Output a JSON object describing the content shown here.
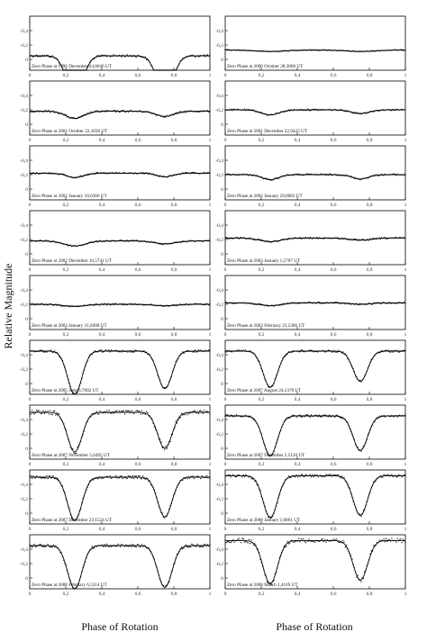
{
  "figure": {
    "ylabel": "Relative Magnitude",
    "xlabel_left": "Phase of Rotation",
    "xlabel_right": "Phase of Rotation"
  },
  "chart_data": {
    "type": "scatter",
    "x_ticks": [
      "0",
      "0,2",
      "0,4",
      "0,6",
      "0,8",
      "1"
    ],
    "xlim": [
      0,
      1
    ],
    "y_inverted": true,
    "grid": false,
    "panels": [
      {
        "label": "Zero Phase at 1996 December 24,8646 UT",
        "y_ticks": [
          "-0,4",
          "-0,2",
          "0"
        ],
        "ylim": [
          -0.6,
          0.15
        ],
        "baseline": -0.05,
        "depth1": 0.55,
        "depth2": 0.52,
        "width": 0.045,
        "noise": 0.015
      },
      {
        "label": "Zero Phase at 2000 October 28,3000 UT",
        "y_ticks": [
          "-0,4",
          "-0,2",
          "0"
        ],
        "ylim": [
          -0.6,
          0.15
        ],
        "baseline": -0.13,
        "depth1": 0.02,
        "depth2": 0.02,
        "width": 0.08,
        "noise": 0.006
      },
      {
        "label": "Zero Phase at 2001 October 22,1830 UT",
        "y_ticks": [
          "-0,4",
          "-0,2",
          "0"
        ],
        "ylim": [
          -0.6,
          0.15
        ],
        "baseline": -0.18,
        "depth1": 0.1,
        "depth2": 0.07,
        "width": 0.05,
        "noise": 0.012
      },
      {
        "label": "Zero Phase at 2001 December 22,9425 UT",
        "y_ticks": [
          "-0,4",
          "-0,2",
          "0"
        ],
        "ylim": [
          -0.6,
          0.15
        ],
        "baseline": -0.2,
        "depth1": 0.07,
        "depth2": 0.05,
        "width": 0.05,
        "noise": 0.01
      },
      {
        "label": "Zero Phase at 2002 January 10,6366 UT",
        "y_ticks": [
          "-0,4",
          "-0,2",
          "0"
        ],
        "ylim": [
          -0.6,
          0.15
        ],
        "baseline": -0.22,
        "depth1": 0.06,
        "depth2": 0.05,
        "width": 0.045,
        "noise": 0.01
      },
      {
        "label": "Zero Phase at 2002 January 29,8082 UT",
        "y_ticks": [
          "-0,4",
          "-0,2",
          "0"
        ],
        "ylim": [
          -0.6,
          0.15
        ],
        "baseline": -0.2,
        "depth1": 0.07,
        "depth2": 0.06,
        "width": 0.045,
        "noise": 0.01
      },
      {
        "label": "Zero Phase at 2002 December 10,5741 UT",
        "y_ticks": [
          "-0,4",
          "-0,2",
          "0"
        ],
        "ylim": [
          -0.6,
          0.15
        ],
        "baseline": -0.18,
        "depth1": 0.07,
        "depth2": 0.04,
        "width": 0.06,
        "noise": 0.01
      },
      {
        "label": "Zero Phase at 2003 January 1,5707 UT",
        "y_ticks": [
          "-0,4",
          "-0,2",
          "0"
        ],
        "ylim": [
          -0.6,
          0.15
        ],
        "baseline": -0.22,
        "depth1": 0.05,
        "depth2": 0.03,
        "width": 0.06,
        "noise": 0.01
      },
      {
        "label": "Zero Phase at 2003 January 31,8498 UT",
        "y_ticks": [
          "-0,4",
          "-0,2",
          "0"
        ],
        "ylim": [
          -0.6,
          0.15
        ],
        "baseline": -0.2,
        "depth1": 0.03,
        "depth2": 0.02,
        "width": 0.06,
        "noise": 0.01
      },
      {
        "label": "Zero Phase at 2003 February 23,5306 UT",
        "y_ticks": [
          "-0,4",
          "-0,2",
          "0"
        ],
        "ylim": [
          -0.6,
          0.15
        ],
        "baseline": -0.22,
        "depth1": 0.04,
        "depth2": 0.02,
        "width": 0.06,
        "noise": 0.01
      },
      {
        "label": "Zero Phase at 2005 June 6,7002 UT",
        "y_ticks": [
          "-0,4",
          "-0,2",
          "0"
        ],
        "ylim": [
          -0.6,
          0.15
        ],
        "baseline": -0.45,
        "depth1": 0.6,
        "depth2": 0.52,
        "width": 0.04,
        "noise": 0.015
      },
      {
        "label": "Zero Phase at 2007 August 24,1378 UT",
        "y_ticks": [
          "-0,4",
          "-0,2",
          "0"
        ],
        "ylim": [
          -0.6,
          0.15
        ],
        "baseline": -0.45,
        "depth1": 0.5,
        "depth2": 0.42,
        "width": 0.04,
        "noise": 0.015
      },
      {
        "label": "Zero Phase at 2007 November 5,6495 UT",
        "y_ticks": [
          "-0,4",
          "-0,2",
          "0"
        ],
        "ylim": [
          -0.6,
          0.15
        ],
        "baseline": -0.5,
        "depth1": 0.55,
        "depth2": 0.5,
        "width": 0.04,
        "noise": 0.03
      },
      {
        "label": "Zero Phase at 2007 December 2,5120 UT",
        "y_ticks": [
          "-0,4",
          "-0,2",
          "0"
        ],
        "ylim": [
          -0.6,
          0.15
        ],
        "baseline": -0.45,
        "depth1": 0.55,
        "depth2": 0.48,
        "width": 0.04,
        "noise": 0.015
      },
      {
        "label": "Zero Phase at 2007 December 23,1524 UT",
        "y_ticks": [
          "-0,4",
          "-0,2",
          "0"
        ],
        "ylim": [
          -0.6,
          0.15
        ],
        "baseline": -0.5,
        "depth1": 0.6,
        "depth2": 0.55,
        "width": 0.04,
        "noise": 0.02
      },
      {
        "label": "Zero Phase at 2008 January 1,0861 UT",
        "y_ticks": [
          "-0,4",
          "-0,2",
          "0"
        ],
        "ylim": [
          -0.6,
          0.15
        ],
        "baseline": -0.52,
        "depth1": 0.58,
        "depth2": 0.55,
        "width": 0.04,
        "noise": 0.02
      },
      {
        "label": "Zero Phase at 2008 February 6,5314 UT",
        "y_ticks": [
          "-0,4",
          "-0,2",
          "0"
        ],
        "ylim": [
          -0.6,
          0.15
        ],
        "baseline": -0.45,
        "depth1": 0.6,
        "depth2": 0.58,
        "width": 0.04,
        "noise": 0.02
      },
      {
        "label": "Zero Phase at 2008 March 1,4169 UT",
        "y_ticks": [
          "-0,4",
          "-0,2",
          "0"
        ],
        "ylim": [
          -0.6,
          0.15
        ],
        "baseline": -0.52,
        "depth1": 0.6,
        "depth2": 0.55,
        "width": 0.04,
        "noise": 0.03
      }
    ]
  }
}
